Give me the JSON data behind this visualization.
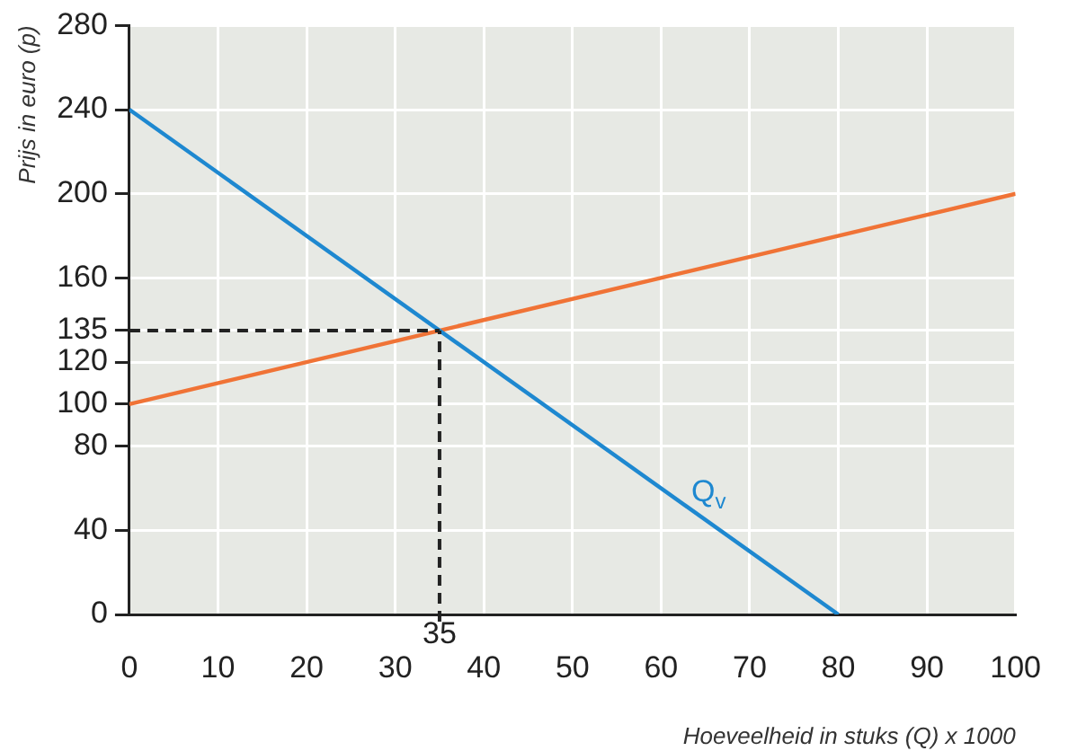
{
  "chart_data": {
    "type": "line",
    "xlabel": "Hoeveelheid in stuks (Q) x 1000",
    "ylabel": "Prijs in euro (p)",
    "xlim": [
      0,
      100
    ],
    "ylim": [
      0,
      280
    ],
    "xticks": [
      0,
      10,
      20,
      30,
      40,
      50,
      60,
      70,
      80,
      90,
      100
    ],
    "yticks": [
      0,
      40,
      80,
      100,
      120,
      135,
      160,
      200,
      240,
      280
    ],
    "series": [
      {
        "name": "Q$_{v}$",
        "color": "#1e88d0",
        "x": [
          0,
          80
        ],
        "values": [
          240,
          0
        ]
      },
      {
        "color": "#f07336",
        "x": [
          0,
          100
        ],
        "values": [
          100,
          200
        ]
      }
    ],
    "ref_lines": [
      {
        "axis": "x",
        "value": 35,
        "label": "35",
        "color": "#222222",
        "line_style": "dashed"
      },
      {
        "axis": "y",
        "value": 135,
        "color": "#222222",
        "line_style": "dashed"
      }
    ],
    "grid": true,
    "legend": false,
    "marker": "none",
    "line_style": "solid"
  }
}
